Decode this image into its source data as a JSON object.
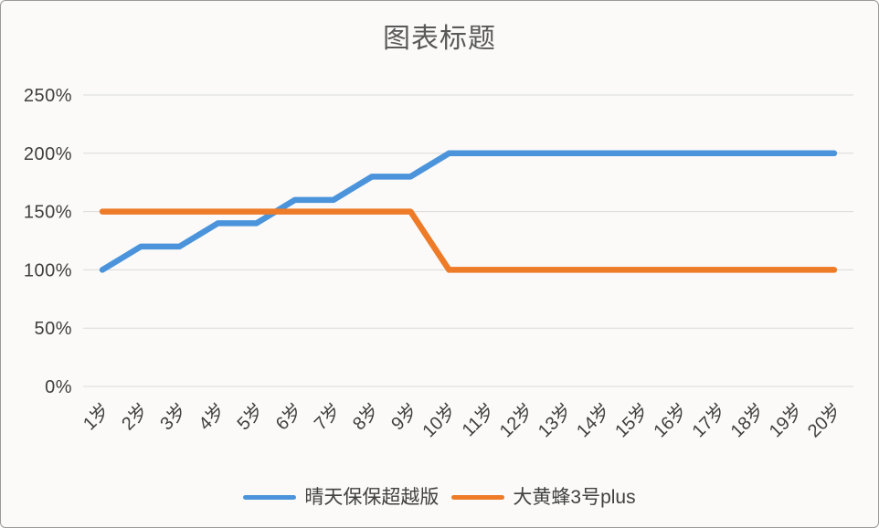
{
  "frame": {
    "background": "#fbfaf9",
    "border_color": "#9b9998"
  },
  "chart_data": {
    "type": "line",
    "title": "图表标题",
    "title_color": "#595959",
    "categories": [
      "1岁",
      "2岁",
      "3岁",
      "4岁",
      "5岁",
      "6岁",
      "7岁",
      "8岁",
      "9岁",
      "10岁",
      "11岁",
      "12岁",
      "13岁",
      "14岁",
      "15岁",
      "16岁",
      "17岁",
      "18岁",
      "19岁",
      "20岁"
    ],
    "series": [
      {
        "name": "晴天保保超越版",
        "color": "#4B94DB",
        "values": [
          100,
          120,
          120,
          140,
          140,
          160,
          160,
          180,
          180,
          200,
          200,
          200,
          200,
          200,
          200,
          200,
          200,
          200,
          200,
          200
        ]
      },
      {
        "name": "大黄蜂3号plus",
        "color": "#EE7B28",
        "values": [
          150,
          150,
          150,
          150,
          150,
          150,
          150,
          150,
          150,
          100,
          100,
          100,
          100,
          100,
          100,
          100,
          100,
          100,
          100,
          100
        ]
      }
    ],
    "xlabel": "",
    "ylabel": "",
    "ylim": [
      0,
      250
    ],
    "ytick_step": 50,
    "ytick_labels": [
      "0%",
      "50%",
      "100%",
      "150%",
      "200%",
      "250%"
    ],
    "unit": "%",
    "grid": true,
    "gridline_color": "#d9d9d9",
    "axis_text_color": "#3f3f3f",
    "legend_position": "bottom",
    "x_tick_rotation_deg": -45
  }
}
